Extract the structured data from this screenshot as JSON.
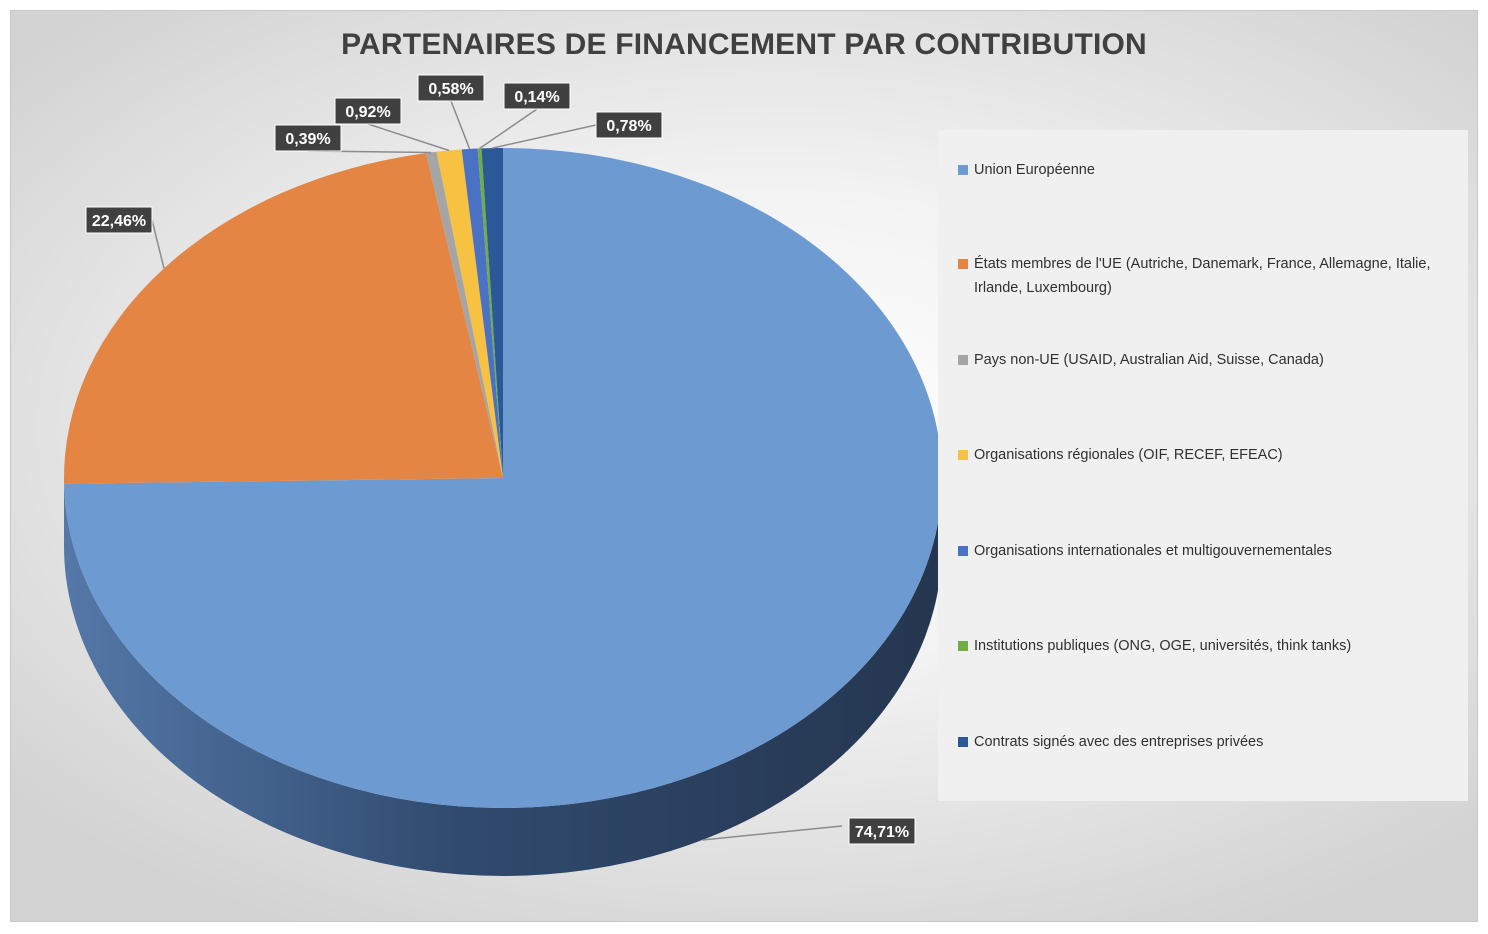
{
  "chart_data": {
    "type": "pie",
    "title": "PARTENAIRES DE FINANCEMENT PAR CONTRIBUTION",
    "legend_position": "right",
    "slices": [
      {
        "label": "Union Européenne",
        "value": 74.71,
        "display": "74,71%",
        "color": "#6d9bd1"
      },
      {
        "label": "États membres de l'UE (Autriche, Danemark, France, Allemagne, Italie, Irlande, Luxembourg)",
        "value": 22.46,
        "display": "22,46%",
        "color": "#e48544"
      },
      {
        "label": "Pays non-UE (USAID, Australian Aid, Suisse, Canada)",
        "value": 0.39,
        "display": "0,39%",
        "color": "#a5a5a5"
      },
      {
        "label": "Organisations régionales (OIF, RECEF, EFEAC)",
        "value": 0.92,
        "display": "0,92%",
        "color": "#f7c142"
      },
      {
        "label": "Organisations internationales et multigouvernementales",
        "value": 0.58,
        "display": "0,58%",
        "color": "#4a72c4"
      },
      {
        "label": "Institutions publiques (ONG, OGE, universités, think tanks)",
        "value": 0.14,
        "display": "0,14%",
        "color": "#70ad47"
      },
      {
        "label": "Contrats signés avec des entreprises privées",
        "value": 0.78,
        "display": "0,78%",
        "color": "#2b5896"
      }
    ]
  }
}
